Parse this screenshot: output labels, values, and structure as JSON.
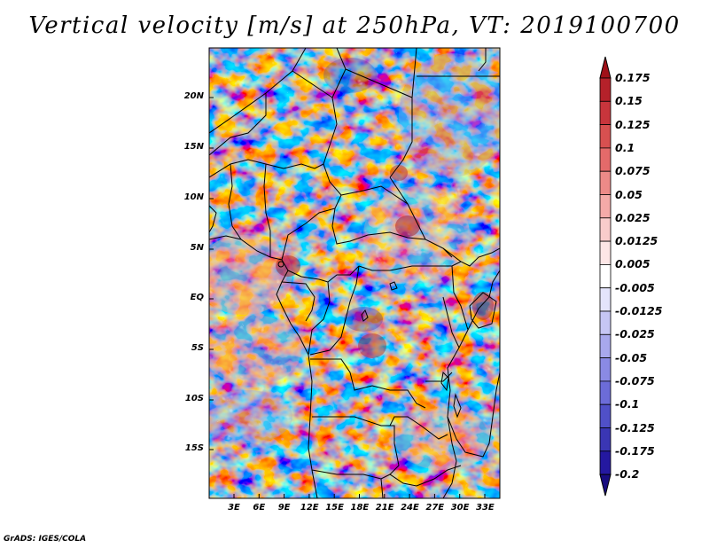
{
  "title": "Vertical velocity [m/s] at 250hPa, VT: 2019100700",
  "footer": "GrADS: IGES/COLA",
  "lat_labels": [
    "20N",
    "15N",
    "10N",
    "5N",
    "EQ",
    "5S",
    "10S",
    "15S"
  ],
  "lon_labels": [
    "3E",
    "6E",
    "9E",
    "12E",
    "15E",
    "18E",
    "21E",
    "24E",
    "27E",
    "30E",
    "33E"
  ],
  "colorbar": {
    "levels": [
      "0.175",
      "0.15",
      "0.125",
      "0.1",
      "0.075",
      "0.05",
      "0.025",
      "0.0125",
      "0.005",
      "-0.005",
      "-0.0125",
      "-0.025",
      "-0.05",
      "-0.075",
      "-0.1",
      "-0.125",
      "-0.175",
      "-0.2"
    ],
    "colors": [
      "#a01018",
      "#b5212a",
      "#c8353c",
      "#d85050",
      "#e46a6a",
      "#ec8a88",
      "#f4aaa8",
      "#f9cccb",
      "#fde6e6",
      "#ffffff",
      "#e4e4fb",
      "#c6c6f4",
      "#a8a8ec",
      "#8a8ae4",
      "#6c6cd8",
      "#5050c8",
      "#3a36b4",
      "#2418a0",
      "#180c80"
    ]
  }
}
